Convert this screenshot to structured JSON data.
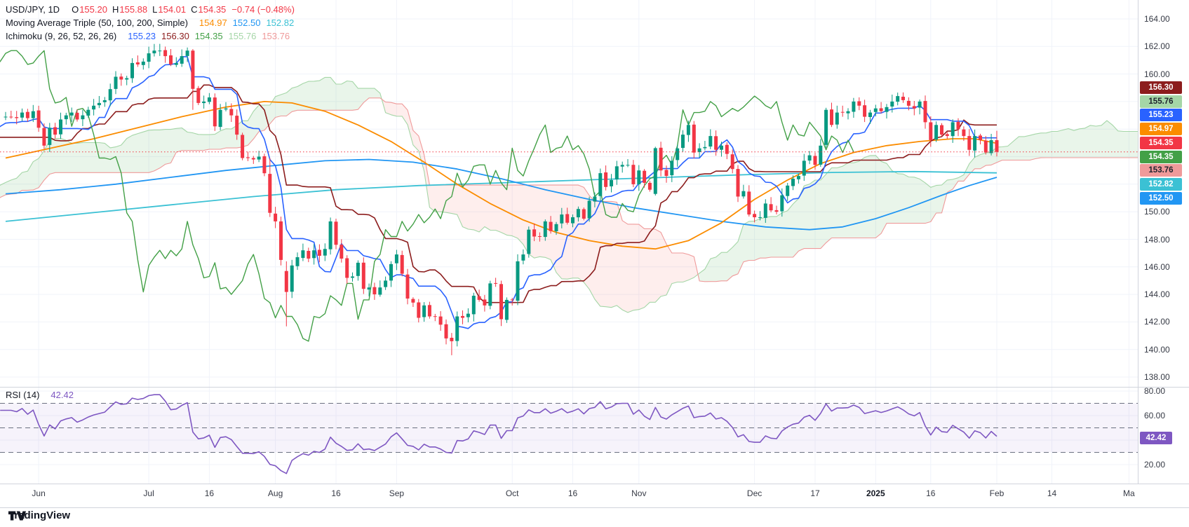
{
  "header": {
    "title": "USD/JPY, 1D",
    "ohlc": [
      {
        "k": "O",
        "v": "155.20"
      },
      {
        "k": "H",
        "v": "155.88"
      },
      {
        "k": "L",
        "v": "154.01"
      },
      {
        "k": "C",
        "v": "154.35"
      }
    ],
    "ohlc_value_color": "#f23645",
    "change": "−0.74 (−0.48%)",
    "rows": [
      {
        "label": "Moving Average Triple (50, 100, 200, Simple)",
        "values": [
          "154.97",
          "152.50",
          "152.82"
        ]
      },
      {
        "label": "Ichimoku (9, 26, 52, 26, 26)",
        "values": [
          "155.23",
          "156.30",
          "154.35",
          "155.76",
          "153.76"
        ]
      }
    ]
  },
  "rsi_row": {
    "label": "RSI (14)",
    "value": "42.42"
  },
  "logo_text": "TradingView",
  "palette": {
    "up": "#089981",
    "down": "#f23645",
    "ma50": "#fb8c00",
    "ma100": "#2196f3",
    "ma200": "#3bc1d4",
    "tenkan": "#2962ff",
    "kijun": "#8c1d1d",
    "chikou": "#43a047",
    "senkou_a": "#a5d6a7",
    "senkou_b": "#ef9a9a",
    "cloud_bull": "rgba(76,175,80,0.12)",
    "cloud_bear": "rgba(244,67,54,0.09)",
    "rsi": "#7e57c2",
    "rsi_band": "rgba(126,87,194,0.07)",
    "rsi_dash": "#6b7080",
    "grid": "#f0f3fa",
    "separator": "#d1d4dc",
    "axis_text": "#363a45",
    "text": "#131722"
  },
  "price_axis_ticks": [
    164,
    162,
    160,
    150,
    148,
    146,
    144,
    142,
    140,
    138
  ],
  "rsi_axis_ticks": [
    80,
    60,
    40,
    20
  ],
  "badges": [
    {
      "v": "156.30",
      "bg": "#8c1d1d",
      "fg": "#ffffff"
    },
    {
      "v": "155.76",
      "bg": "#a5d6a7",
      "fg": "#1e222d"
    },
    {
      "v": "155.23",
      "bg": "#2962ff",
      "fg": "#ffffff"
    },
    {
      "v": "154.97",
      "bg": "#fb8c00",
      "fg": "#ffffff"
    },
    {
      "v": "154.35",
      "bg": "#f23645",
      "fg": "#ffffff"
    },
    {
      "v": "154.35",
      "bg": "#43a047",
      "fg": "#ffffff"
    },
    {
      "v": "153.76",
      "bg": "#ef9a9a",
      "fg": "#1e222d"
    },
    {
      "v": "152.82",
      "bg": "#3bc1d4",
      "fg": "#ffffff"
    },
    {
      "v": "152.50",
      "bg": "#2196f3",
      "fg": "#ffffff"
    }
  ],
  "rsi_badge": {
    "v": "42.42",
    "bg": "#7e57c2",
    "fg": "#ffffff"
  },
  "chart_data": {
    "type": "candlestick",
    "symbol": "USD/JPY",
    "interval": "1D",
    "ohlc_last": {
      "o": 155.2,
      "h": 155.88,
      "l": 154.01,
      "c": 154.35
    },
    "last_price": 154.35,
    "price_range": [
      138,
      164
    ],
    "price_grid_step": 2,
    "rsi_range": [
      20,
      80
    ],
    "rsi_levels": [
      70,
      50,
      30
    ],
    "rsi_last": 42.42,
    "time_ticks": [
      {
        "label": "Jun",
        "i": 6
      },
      {
        "label": "Jul",
        "i": 26
      },
      {
        "label": "16",
        "i": 37
      },
      {
        "label": "Aug",
        "i": 49
      },
      {
        "label": "16",
        "i": 60
      },
      {
        "label": "Sep",
        "i": 71
      },
      {
        "label": "Oct",
        "i": 92
      },
      {
        "label": "16",
        "i": 103
      },
      {
        "label": "Nov",
        "i": 115
      },
      {
        "label": "Dec",
        "i": 136
      },
      {
        "label": "17",
        "i": 147
      },
      {
        "label": "2025",
        "i": 158,
        "bold": true
      },
      {
        "label": "16",
        "i": 168
      },
      {
        "label": "Feb",
        "i": 180
      },
      {
        "label": "14",
        "i": 190
      },
      {
        "label": "Ma",
        "i": 204
      }
    ],
    "pre_closes": [
      147.7,
      147.9,
      148.3,
      149.0,
      149.1,
      150.9,
      151.2,
      151.6,
      151.4,
      151.4,
      151.0,
      151.3,
      151.4,
      151.3,
      151.7,
      151.6,
      151.7,
      151.3,
      151.6,
      151.8,
      151.8,
      151.9,
      153.2,
      153.3,
      153.2,
      154.3,
      154.7,
      154.8,
      154.6,
      155.3,
      154.8,
      155.6,
      155.7,
      156.8,
      157.8,
      157.6,
      155.6,
      153.6,
      153.0,
      154.0,
      154.7,
      155.3,
      155.5,
      155.9,
      156.2,
      155.9,
      156.4,
      156.3,
      155.9,
      156.2,
      156.6,
      156.9
    ],
    "closes": [
      156.9,
      156.9,
      156.8,
      157.2,
      156.8,
      157.3,
      156.1,
      154.8,
      156.1,
      155.6,
      156.7,
      157.0,
      157.2,
      156.7,
      157.0,
      157.4,
      157.7,
      157.9,
      158.1,
      158.9,
      159.8,
      159.6,
      159.7,
      160.8,
      160.7,
      160.9,
      161.5,
      161.7,
      161.7,
      161.3,
      160.7,
      160.8,
      161.3,
      161.7,
      158.9,
      157.9,
      158.0,
      158.3,
      156.2,
      157.4,
      157.5,
      157.0,
      155.6,
      153.9,
      153.9,
      153.8,
      154.0,
      152.8,
      149.9,
      149.3,
      146.5,
      144.2,
      146.1,
      146.7,
      147.2,
      146.6,
      147.2,
      146.8,
      147.3,
      149.3,
      147.6,
      146.6,
      145.2,
      145.3,
      146.3,
      144.4,
      144.5,
      144.0,
      144.5,
      145.0,
      146.2,
      146.9,
      145.5,
      143.7,
      143.4,
      142.3,
      143.2,
      142.4,
      142.4,
      141.8,
      140.8,
      140.6,
      142.4,
      142.3,
      142.6,
      143.9,
      143.6,
      143.2,
      144.8,
      144.8,
      142.2,
      143.6,
      143.6,
      146.4,
      146.9,
      148.7,
      148.2,
      148.2,
      149.3,
      148.6,
      149.1,
      149.8,
      149.2,
      149.6,
      150.2,
      149.5,
      150.8,
      151.1,
      152.8,
      151.8,
      152.3,
      153.3,
      153.4,
      153.4,
      152.0,
      153.0,
      152.1,
      151.6,
      154.6,
      153.0,
      152.6,
      153.7,
      154.6,
      155.6,
      156.3,
      154.3,
      154.6,
      154.7,
      155.5,
      154.5,
      154.8,
      154.2,
      153.1,
      151.1,
      151.5,
      149.8,
      149.6,
      149.6,
      150.6,
      150.1,
      150.0,
      151.2,
      151.9,
      152.4,
      152.6,
      153.7,
      154.1,
      153.4,
      154.8,
      157.4,
      156.3,
      157.2,
      157.2,
      157.3,
      158.0,
      157.7,
      156.9,
      157.2,
      157.5,
      157.3,
      157.6,
      158.0,
      158.4,
      158.1,
      157.7,
      157.5,
      158.0,
      156.5,
      155.2,
      156.3,
      155.6,
      155.5,
      156.5,
      156.0,
      155.5,
      154.5,
      155.5,
      155.2,
      154.3,
      155.2,
      154.35
    ],
    "bar_overrides": {
      "34": [
        161.7,
        161.81,
        157.4,
        158.92
      ],
      "48": [
        152.75,
        153.9,
        149.62,
        149.92
      ],
      "51": [
        145.7,
        146.4,
        141.68,
        144.18
      ],
      "81": [
        140.85,
        141.2,
        139.58,
        140.6
      ],
      "118": [
        151.3,
        154.72,
        151.18,
        154.62
      ],
      "149": [
        154.85,
        157.55,
        154.65,
        157.4
      ],
      "180": [
        155.2,
        155.88,
        154.01,
        154.35
      ]
    },
    "indicators": {
      "ichimoku_params": [
        9,
        26,
        52,
        26,
        26
      ],
      "rsi_period": 14,
      "ma_windows": [
        50,
        100,
        200
      ],
      "ma_anchors": {
        "ma50": [
          [
            0,
            153.9
          ],
          [
            8,
            154.6
          ],
          [
            16,
            155.3
          ],
          [
            24,
            156.1
          ],
          [
            32,
            156.9
          ],
          [
            40,
            157.6
          ],
          [
            47,
            158.0
          ],
          [
            52,
            157.9
          ],
          [
            58,
            157.3
          ],
          [
            64,
            156.3
          ],
          [
            70,
            155.1
          ],
          [
            76,
            153.6
          ],
          [
            82,
            152.0
          ],
          [
            88,
            150.6
          ],
          [
            94,
            149.4
          ],
          [
            100,
            148.5
          ],
          [
            106,
            147.9
          ],
          [
            112,
            147.5
          ],
          [
            118,
            147.3
          ],
          [
            124,
            147.9
          ],
          [
            130,
            149.2
          ],
          [
            136,
            150.9
          ],
          [
            142,
            152.3
          ],
          [
            148,
            153.5
          ],
          [
            154,
            154.3
          ],
          [
            160,
            154.8
          ],
          [
            166,
            155.1
          ],
          [
            172,
            155.3
          ],
          [
            176,
            155.3
          ],
          [
            180,
            154.97
          ]
        ],
        "ma100": [
          [
            0,
            151.3
          ],
          [
            10,
            151.6
          ],
          [
            20,
            152.0
          ],
          [
            30,
            152.5
          ],
          [
            40,
            153.0
          ],
          [
            50,
            153.4
          ],
          [
            58,
            153.7
          ],
          [
            66,
            153.8
          ],
          [
            74,
            153.6
          ],
          [
            82,
            153.1
          ],
          [
            90,
            152.4
          ],
          [
            98,
            151.6
          ],
          [
            106,
            150.9
          ],
          [
            114,
            150.3
          ],
          [
            122,
            149.8
          ],
          [
            130,
            149.3
          ],
          [
            138,
            148.9
          ],
          [
            146,
            148.7
          ],
          [
            152,
            148.9
          ],
          [
            158,
            149.5
          ],
          [
            164,
            150.3
          ],
          [
            170,
            151.2
          ],
          [
            175,
            151.9
          ],
          [
            180,
            152.5
          ]
        ],
        "ma200": [
          [
            0,
            149.3
          ],
          [
            15,
            149.9
          ],
          [
            30,
            150.5
          ],
          [
            45,
            151.1
          ],
          [
            60,
            151.6
          ],
          [
            75,
            151.9
          ],
          [
            90,
            152.1
          ],
          [
            105,
            152.3
          ],
          [
            120,
            152.5
          ],
          [
            135,
            152.7
          ],
          [
            150,
            152.85
          ],
          [
            165,
            152.92
          ],
          [
            180,
            152.82
          ]
        ]
      }
    }
  }
}
